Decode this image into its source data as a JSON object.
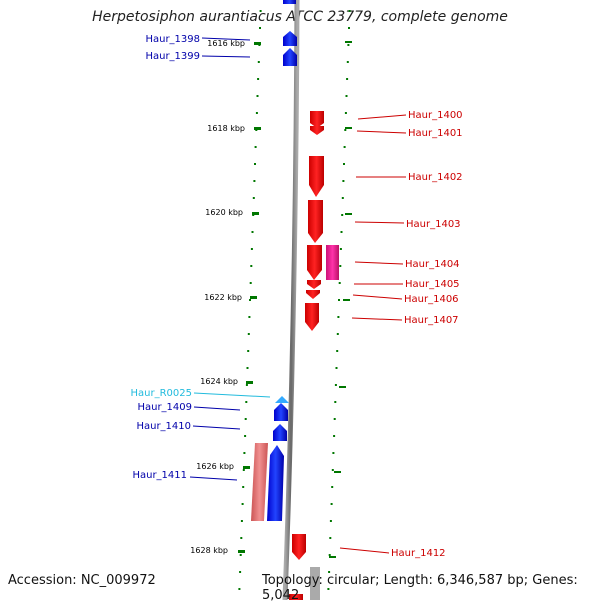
{
  "title": "Herpetosiphon aurantiacus ATCC 23779, complete genome",
  "accession": "Accession: NC_009972",
  "stats": "Topology: circular; Length: 6,346,587 bp; Genes: 5,042",
  "scale_labels": [
    "1616 kbp",
    "1618 kbp",
    "1620 kbp",
    "1622 kbp",
    "1624 kbp",
    "1626 kbp",
    "1628 kbp"
  ],
  "genes_left": [
    {
      "label": "Haur_1398",
      "color": "#0000aa"
    },
    {
      "label": "Haur_1399",
      "color": "#0000aa"
    },
    {
      "label": "Haur_R0025",
      "color": "#22bbdd"
    },
    {
      "label": "Haur_1409",
      "color": "#0000aa"
    },
    {
      "label": "Haur_1410",
      "color": "#0000aa"
    },
    {
      "label": "Haur_1411",
      "color": "#0000aa"
    }
  ],
  "genes_right": [
    {
      "label": "Haur_1400",
      "color": "#cc0000"
    },
    {
      "label": "Haur_1401",
      "color": "#cc0000"
    },
    {
      "label": "Haur_1402",
      "color": "#cc0000"
    },
    {
      "label": "Haur_1403",
      "color": "#cc0000"
    },
    {
      "label": "Haur_1404",
      "color": "#cc0000"
    },
    {
      "label": "Haur_1405",
      "color": "#cc0000"
    },
    {
      "label": "Haur_1406",
      "color": "#cc0000"
    },
    {
      "label": "Haur_1407",
      "color": "#cc0000"
    },
    {
      "label": "Haur_1412",
      "color": "#cc0000"
    }
  ],
  "colors": {
    "forward": "#0000ff",
    "reverse": "#ff0000",
    "rna": "#33aaff",
    "pseudo_pink": "#ee2299",
    "pseudo_salmon": "#e87878",
    "backbone": "#888888",
    "tick": "#007700"
  }
}
